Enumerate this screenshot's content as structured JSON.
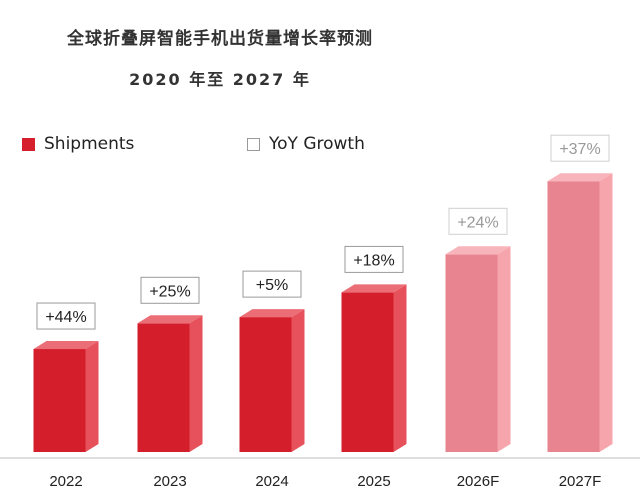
{
  "title": "全球折叠屏智能手机出货量增长率预测",
  "subtitle": "2020 年至 2027 年",
  "legend": {
    "shipments": "Shipments",
    "yoy": "YoY Growth"
  },
  "colors": {
    "actual": "#e0202d",
    "forecast": "#f48b96"
  },
  "chart_data": {
    "type": "bar",
    "title": "全球折叠屏智能手机出货量增长率预测",
    "subtitle": "2020 年至 2027 年",
    "categories": [
      "2022",
      "2023",
      "2024",
      "2025",
      "2026F",
      "2027F"
    ],
    "series": [
      {
        "name": "Shipments",
        "values": [
          100,
          125,
          131,
          155,
          192,
          263
        ]
      }
    ],
    "yoy_growth_labels": [
      "+44%",
      "+25%",
      "+5%",
      "+18%",
      "+24%",
      "+37%"
    ],
    "forecast": [
      false,
      false,
      false,
      false,
      true,
      true
    ],
    "ylim": [
      0,
      270
    ],
    "grid": false,
    "legend_position": "top-left"
  }
}
